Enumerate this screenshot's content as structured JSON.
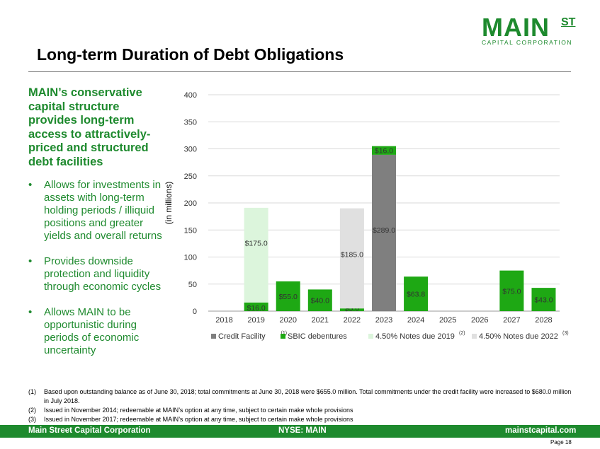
{
  "logo": {
    "main": "MAIN",
    "st": "ST",
    "sub": "CAPITAL CORPORATION"
  },
  "page_title": "Long-term Duration of Debt Obligations",
  "left": {
    "lead": "MAIN’s conservative capital structure provides long-term access to attractively-priced and structured debt facilities",
    "bullets": [
      "Allows for investments in assets with long-term holding periods / illiquid positions and greater yields and overall returns",
      "Provides downside protection and liquidity through economic cycles",
      "Allows MAIN to be opportunistic during periods of economic uncertainty"
    ]
  },
  "chart_data": {
    "type": "bar",
    "stacked": true,
    "ylabel": "(in millions)",
    "ylim": [
      0,
      400
    ],
    "yticks": [
      0,
      50,
      100,
      150,
      200,
      250,
      300,
      350,
      400
    ],
    "grid": true,
    "categories": [
      "2018",
      "2019",
      "2020",
      "2021",
      "2022",
      "2023",
      "2024",
      "2025",
      "2026",
      "2027",
      "2028"
    ],
    "series": [
      {
        "name": "Credit Facility",
        "sup": "(1)",
        "color": "#7f7f7f",
        "values": [
          0,
          0,
          0,
          0,
          0,
          289.0,
          0,
          0,
          0,
          0,
          0
        ],
        "labels": [
          "",
          "",
          "",
          "",
          "",
          "$289.0",
          "",
          "",
          "",
          "",
          ""
        ]
      },
      {
        "name": "SBIC debentures",
        "sup": "",
        "color": "#1ea814",
        "values": [
          0,
          16.0,
          55.0,
          40.0,
          5.0,
          16.0,
          63.8,
          0,
          0,
          75.0,
          43.0
        ],
        "labels": [
          "",
          "$16.0",
          "$55.0",
          "$40.0",
          "$5.0",
          "$16.0",
          "$63.8",
          "",
          "",
          "$75.0",
          "$43.0"
        ]
      },
      {
        "name": "4.50% Notes due 2019",
        "sup": "(2)",
        "color": "#dcf5dc",
        "values": [
          0,
          175.0,
          0,
          0,
          0,
          0,
          0,
          0,
          0,
          0,
          0
        ],
        "labels": [
          "",
          "$175.0",
          "",
          "",
          "",
          "",
          "",
          "",
          "",
          "",
          ""
        ]
      },
      {
        "name": "4.50% Notes due 2022",
        "sup": "(3)",
        "color": "#e0e0e0",
        "values": [
          0,
          0,
          0,
          0,
          185.0,
          0,
          0,
          0,
          0,
          0,
          0
        ],
        "labels": [
          "",
          "",
          "",
          "",
          "$185.0",
          "",
          "",
          "",
          "",
          "",
          ""
        ]
      }
    ],
    "legend": "bottom"
  },
  "footnotes": [
    {
      "num": "(1)",
      "text": "Based upon outstanding balance as of June 30, 2018; total commitments at June 30, 2018 were $655.0 million. Total commitments under the credit facility were increased to $680.0 million in July 2018."
    },
    {
      "num": "(2)",
      "text": "Issued in November 2014; redeemable at MAIN’s option at any time, subject to certain make whole provisions"
    },
    {
      "num": "(3)",
      "text": "Issued in November 2017; redeemable at MAIN’s option at any time, subject to certain make whole provisions"
    }
  ],
  "footer": {
    "left": "Main Street Capital Corporation",
    "center": "NYSE: MAIN",
    "right": "mainstcapital.com"
  },
  "page": "Page  18"
}
